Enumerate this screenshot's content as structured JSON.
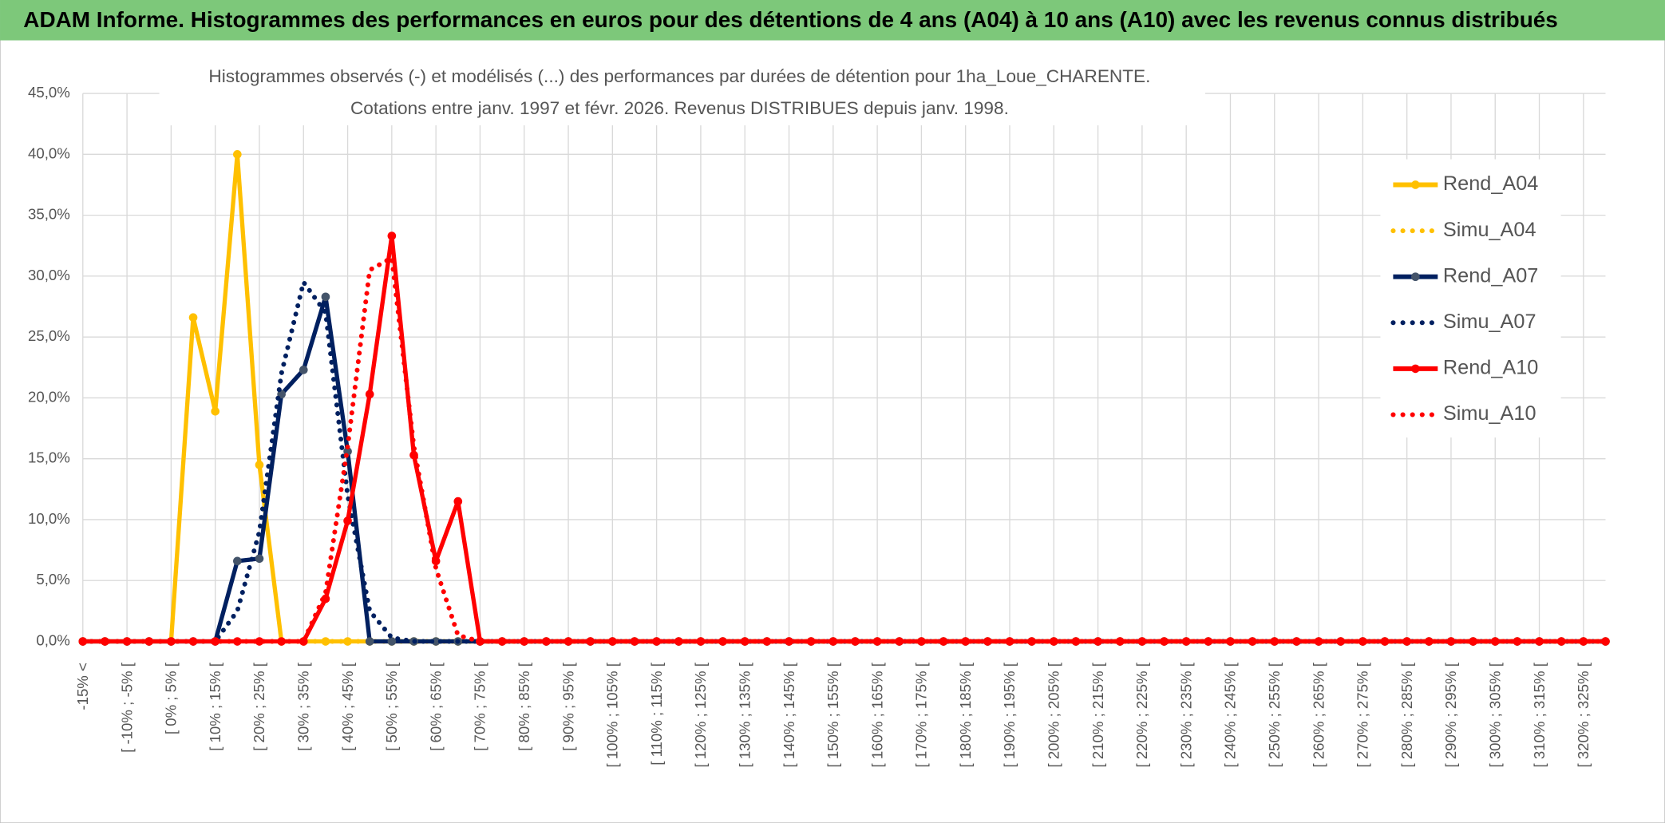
{
  "chart_data": {
    "type": "line",
    "title": "ADAM Informe. Histogrammes des performances en euros pour des détentions de 4 ans (A04) à 10 ans (A10) avec les revenus connus distribués",
    "subtitle": [
      "Histogrammes observés (-) et modélisés (...) des performances par durées de détention pour 1ha_Loue_CHARENTE.",
      "Cotations entre janv. 1997 et févr. 2026. Revenus DISTRIBUES depuis janv. 1998."
    ],
    "categories": [
      "-15% <",
      null,
      "[ -10% ; -5% [",
      null,
      "[ 0% ; 5% [",
      null,
      "[ 10% ; 15% [",
      null,
      "[ 20% ; 25% [",
      null,
      "[ 30% ; 35% [",
      null,
      "[ 40% ; 45% [",
      null,
      "[ 50% ; 55% [",
      null,
      "[ 60% ; 65% [",
      null,
      "[ 70% ; 75% [",
      null,
      "[ 80% ; 85% [",
      null,
      "[ 90% ; 95% [",
      null,
      "[ 100% ; 105% [",
      null,
      "[ 110% ; 115% [",
      null,
      "[ 120% ; 125% [",
      null,
      "[ 130% ; 135% [",
      null,
      "[ 140% ; 145% [",
      null,
      "[ 150% ; 155% [",
      null,
      "[ 160% ; 165% [",
      null,
      "[ 170% ; 175% [",
      null,
      "[ 180% ; 185% [",
      null,
      "[ 190% ; 195% [",
      null,
      "[ 200% ; 205% [",
      null,
      "[ 210% ; 215% [",
      null,
      "[ 220% ; 225% [",
      null,
      "[ 230% ; 235% [",
      null,
      "[ 240% ; 245% [",
      null,
      "[ 250% ; 255% [",
      null,
      "[ 260% ; 265% [",
      null,
      "[ 270% ; 275% [",
      null,
      "[ 280% ; 285% [",
      null,
      "[ 290% ; 295% [",
      null,
      "[ 300% ; 305% [",
      null,
      "[ 310% ; 315% [",
      null,
      "[ 320% ; 325% [",
      null
    ],
    "series": [
      {
        "name": "Rend_A04",
        "color": "#ffc000",
        "style": "solid",
        "markers": true,
        "values": [
          0,
          0,
          0,
          0,
          0,
          26.6,
          18.9,
          40,
          14.5,
          0,
          0,
          0,
          0,
          0,
          0,
          0,
          0,
          0,
          0,
          0,
          0,
          0,
          0,
          0,
          0,
          0,
          0,
          0,
          0,
          0,
          0,
          0,
          0,
          0,
          0,
          0,
          0,
          0,
          0,
          0,
          0,
          0,
          0,
          0,
          0,
          0,
          0,
          0,
          0,
          0,
          0,
          0,
          0,
          0,
          0,
          0,
          0,
          0,
          0,
          0,
          0,
          0,
          0,
          0,
          0,
          0,
          0,
          0,
          0,
          0
        ]
      },
      {
        "name": "Simu_A04",
        "color": "#ffc000",
        "style": "dotted",
        "markers": false,
        "values": [
          0,
          0,
          0,
          0,
          0,
          0,
          0,
          0,
          0,
          0,
          0,
          0,
          0,
          0,
          0,
          0,
          0,
          0,
          0,
          0,
          0,
          0,
          0,
          0,
          0,
          0,
          0,
          0,
          0,
          0,
          0,
          0,
          0,
          0,
          0,
          0,
          0,
          0,
          0,
          0,
          0,
          0,
          0,
          0,
          0,
          0,
          0,
          0,
          0,
          0,
          0,
          0,
          0,
          0,
          0,
          0,
          0,
          0,
          0,
          0,
          0,
          0,
          0,
          0,
          0,
          0,
          0,
          0,
          0,
          0
        ]
      },
      {
        "name": "Rend_A07",
        "color": "#002060",
        "style": "solid",
        "markers": true,
        "values": [
          0,
          0,
          0,
          0,
          0,
          0,
          0,
          6.6,
          6.8,
          20.3,
          22.3,
          28.3,
          15.6,
          0,
          0,
          0,
          0,
          0,
          0,
          0,
          0,
          0,
          0,
          0,
          0,
          0,
          0,
          0,
          0,
          0,
          0,
          0,
          0,
          0,
          0,
          0,
          0,
          0,
          0,
          0,
          0,
          0,
          0,
          0,
          0,
          0,
          0,
          0,
          0,
          0,
          0,
          0,
          0,
          0,
          0,
          0,
          0,
          0,
          0,
          0,
          0,
          0,
          0,
          0,
          0,
          0,
          0,
          0,
          0,
          0
        ]
      },
      {
        "name": "Simu_A07",
        "color": "#002060",
        "style": "dotted",
        "markers": false,
        "values": [
          0,
          0,
          0,
          0,
          0,
          0,
          0,
          2.5,
          9,
          22,
          29.5,
          27,
          12,
          2.5,
          0.3,
          0,
          0,
          0,
          0,
          0,
          0,
          0,
          0,
          0,
          0,
          0,
          0,
          0,
          0,
          0,
          0,
          0,
          0,
          0,
          0,
          0,
          0,
          0,
          0,
          0,
          0,
          0,
          0,
          0,
          0,
          0,
          0,
          0,
          0,
          0,
          0,
          0,
          0,
          0,
          0,
          0,
          0,
          0,
          0,
          0,
          0,
          0,
          0,
          0,
          0,
          0,
          0,
          0,
          0,
          0
        ]
      },
      {
        "name": "Rend_A10",
        "color": "#ff0000",
        "style": "solid",
        "markers": true,
        "values": [
          0,
          0,
          0,
          0,
          0,
          0,
          0,
          0,
          0,
          0,
          0,
          3.5,
          9.9,
          20.3,
          33.3,
          15.3,
          6.6,
          11.5,
          0,
          0,
          0,
          0,
          0,
          0,
          0,
          0,
          0,
          0,
          0,
          0,
          0,
          0,
          0,
          0,
          0,
          0,
          0,
          0,
          0,
          0,
          0,
          0,
          0,
          0,
          0,
          0,
          0,
          0,
          0,
          0,
          0,
          0,
          0,
          0,
          0,
          0,
          0,
          0,
          0,
          0,
          0,
          0,
          0,
          0,
          0,
          0,
          0,
          0,
          0,
          0
        ]
      },
      {
        "name": "Simu_A10",
        "color": "#ff0000",
        "style": "dotted",
        "markers": false,
        "values": [
          0,
          0,
          0,
          0,
          0,
          0,
          0,
          0,
          0,
          0,
          0,
          4,
          16,
          30.5,
          31.5,
          16,
          6,
          0.5,
          0,
          0,
          0,
          0,
          0,
          0,
          0,
          0,
          0,
          0,
          0,
          0,
          0,
          0,
          0,
          0,
          0,
          0,
          0,
          0,
          0,
          0,
          0,
          0,
          0,
          0,
          0,
          0,
          0,
          0,
          0,
          0,
          0,
          0,
          0,
          0,
          0,
          0,
          0,
          0,
          0,
          0,
          0,
          0,
          0,
          0,
          0,
          0,
          0,
          0,
          0,
          0
        ]
      }
    ],
    "ylim": [
      0,
      45
    ],
    "yticks": [
      {
        "value": 0,
        "label": "0,0%"
      },
      {
        "value": 5,
        "label": "5,0%"
      },
      {
        "value": 10,
        "label": "10,0%"
      },
      {
        "value": 15,
        "label": "15,0%"
      },
      {
        "value": 20,
        "label": "20,0%"
      },
      {
        "value": 25,
        "label": "25,0%"
      },
      {
        "value": 30,
        "label": "30,0%"
      },
      {
        "value": 35,
        "label": "35,0%"
      },
      {
        "value": 40,
        "label": "40,0%"
      },
      {
        "value": 45,
        "label": "45,0%"
      }
    ],
    "grid": true,
    "legend": "right"
  }
}
